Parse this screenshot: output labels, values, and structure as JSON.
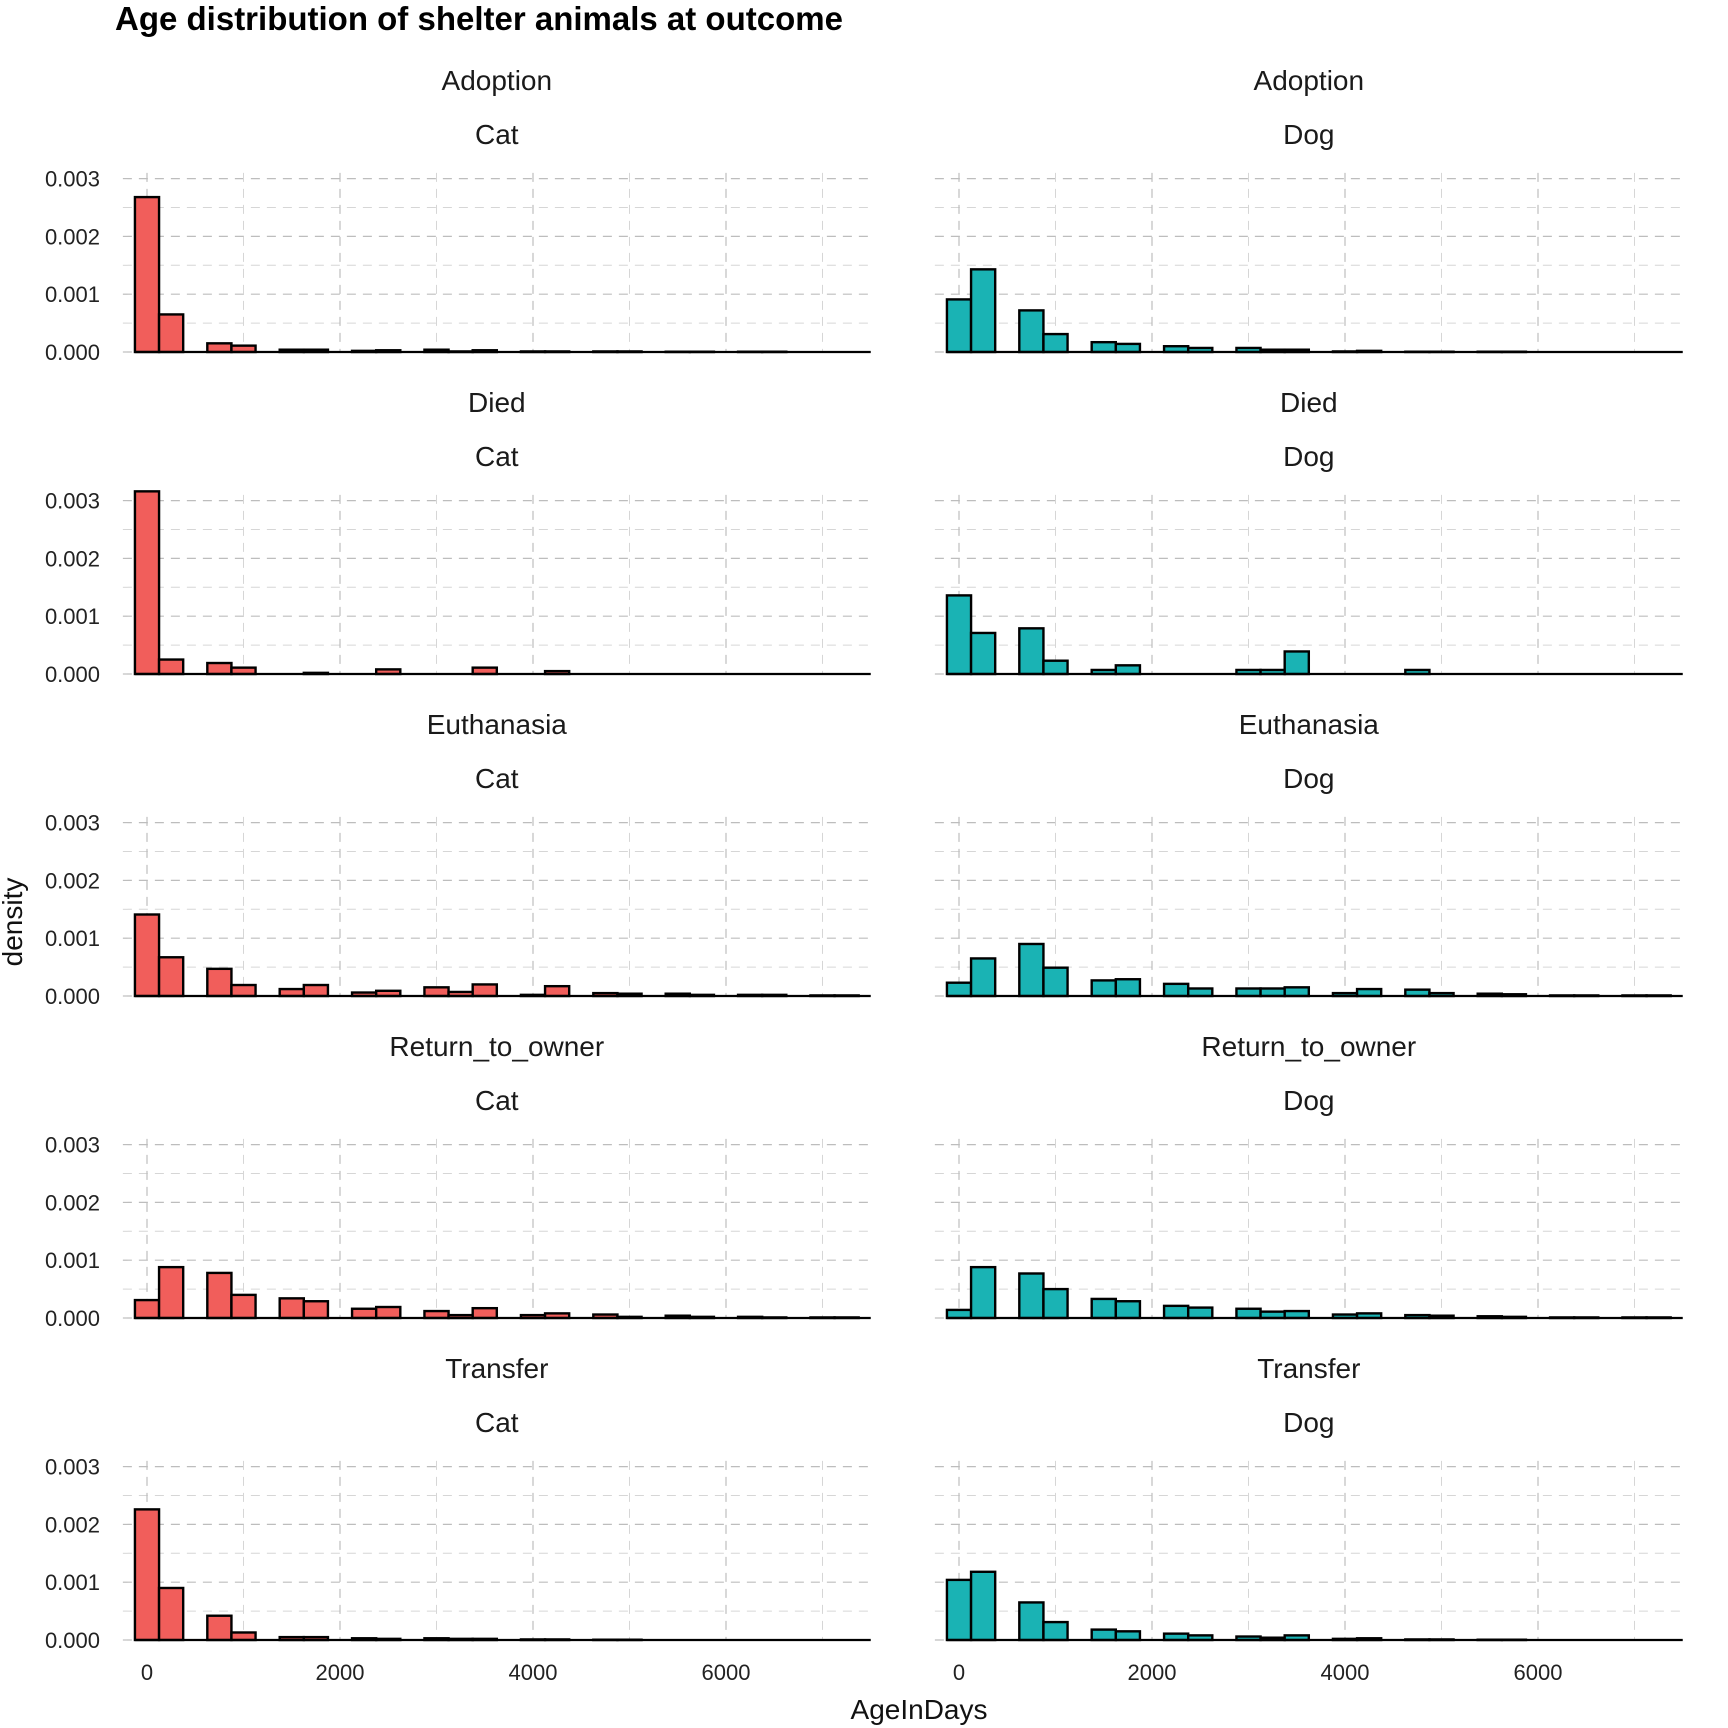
{
  "chart_data": {
    "type": "bar",
    "subtype": "faceted-histogram",
    "title": "Age distribution of shelter animals at outcome",
    "xlabel": "AgeInDays",
    "ylabel": "density",
    "xlim": [
      -250,
      7500
    ],
    "ylim": [
      0,
      0.0031
    ],
    "x_ticks": [
      0,
      2000,
      4000,
      6000
    ],
    "x_tick_labels": [
      "0",
      "2000",
      "4000",
      "6000"
    ],
    "y_ticks": [
      0,
      0.001,
      0.002,
      0.003
    ],
    "y_tick_labels": [
      "0.000",
      "0.001",
      "0.002",
      "0.003"
    ],
    "grid": true,
    "bin_width": 250,
    "bin_starts": [
      -125,
      125,
      375,
      625,
      875,
      1125,
      1375,
      1625,
      1875,
      2125,
      2375,
      2625,
      2875,
      3125,
      3375,
      3625,
      3875,
      4125,
      4375,
      4625,
      4875,
      5125,
      5375,
      5625,
      5875,
      6125,
      6375,
      6625,
      6875,
      7125
    ],
    "species_colors": {
      "Cat": "#f15e5b",
      "Dog": "#1ab3b4"
    },
    "panels": [
      {
        "outcome": "Adoption",
        "species": "Cat",
        "values": [
          0.00268,
          0.00065,
          0,
          0.00015,
          0.00011,
          0,
          4e-05,
          4e-05,
          0,
          2e-05,
          3e-05,
          0,
          4e-05,
          1e-05,
          3e-05,
          0,
          1e-05,
          1e-05,
          0,
          1e-05,
          1e-05,
          0,
          5e-06,
          5e-06,
          0,
          5e-06,
          5e-06,
          0,
          0,
          0
        ]
      },
      {
        "outcome": "Adoption",
        "species": "Dog",
        "values": [
          0.00091,
          0.00143,
          0,
          0.00072,
          0.00031,
          0,
          0.00017,
          0.00014,
          0,
          0.0001,
          7e-05,
          0,
          7e-05,
          4e-05,
          4e-05,
          0,
          1e-05,
          2e-05,
          0,
          5e-06,
          5e-06,
          0,
          5e-06,
          5e-06,
          0,
          0,
          0,
          0,
          0,
          0
        ]
      },
      {
        "outcome": "Died",
        "species": "Cat",
        "values": [
          0.00316,
          0.00025,
          0,
          0.00019,
          0.00011,
          0,
          0,
          2e-05,
          0,
          0,
          8e-05,
          0,
          0,
          0,
          0.00011,
          0,
          0,
          5e-05,
          0,
          0,
          0,
          0,
          0,
          0,
          0,
          0,
          0,
          0,
          0,
          0
        ]
      },
      {
        "outcome": "Died",
        "species": "Dog",
        "values": [
          0.00136,
          0.00071,
          0,
          0.00079,
          0.00023,
          0,
          7e-05,
          0.00015,
          0,
          0,
          0,
          0,
          7e-05,
          7e-05,
          0.00039,
          0,
          0,
          0,
          0,
          7e-05,
          0,
          0,
          0,
          0,
          0,
          0,
          0,
          0,
          0,
          0
        ]
      },
      {
        "outcome": "Euthanasia",
        "species": "Cat",
        "values": [
          0.00141,
          0.00067,
          0,
          0.00047,
          0.00019,
          0,
          0.00012,
          0.00019,
          0,
          6e-05,
          9e-05,
          0,
          0.00015,
          7e-05,
          0.0002,
          0,
          2e-05,
          0.00017,
          0,
          5e-05,
          4e-05,
          0,
          4e-05,
          2e-05,
          0,
          2e-05,
          2e-05,
          0,
          1e-05,
          1e-05
        ]
      },
      {
        "outcome": "Euthanasia",
        "species": "Dog",
        "values": [
          0.00023,
          0.00065,
          0,
          0.0009,
          0.00049,
          0,
          0.00027,
          0.00029,
          0,
          0.00021,
          0.00013,
          0,
          0.00013,
          0.00013,
          0.00015,
          0,
          5e-05,
          0.00012,
          0,
          0.00011,
          5e-05,
          0,
          4e-05,
          3e-05,
          0,
          1e-05,
          1e-05,
          0,
          1e-05,
          1e-05
        ]
      },
      {
        "outcome": "Return_to_owner",
        "species": "Cat",
        "values": [
          0.00031,
          0.00088,
          0,
          0.00078,
          0.0004,
          0,
          0.00034,
          0.00029,
          0,
          0.00016,
          0.00019,
          0,
          0.00012,
          5e-05,
          0.00017,
          0,
          5e-05,
          8e-05,
          0,
          6e-05,
          2e-05,
          0,
          4e-05,
          2e-05,
          0,
          2e-05,
          1e-05,
          0,
          1e-05,
          1e-05
        ]
      },
      {
        "outcome": "Return_to_owner",
        "species": "Dog",
        "values": [
          0.00014,
          0.00088,
          0,
          0.00077,
          0.0005,
          0,
          0.00033,
          0.00029,
          0,
          0.00021,
          0.00018,
          0,
          0.00016,
          0.00011,
          0.00012,
          0,
          6e-05,
          8e-05,
          0,
          5e-05,
          4e-05,
          0,
          3e-05,
          2e-05,
          0,
          1e-05,
          1e-05,
          0,
          1e-05,
          1e-05
        ]
      },
      {
        "outcome": "Transfer",
        "species": "Cat",
        "values": [
          0.00226,
          0.0009,
          0,
          0.00042,
          0.00013,
          0,
          5e-05,
          5e-05,
          0,
          3e-05,
          2e-05,
          0,
          3e-05,
          2e-05,
          2e-05,
          0,
          1e-05,
          1e-05,
          0,
          5e-06,
          5e-06,
          0,
          0,
          0,
          0,
          0,
          0,
          0,
          0,
          0
        ]
      },
      {
        "outcome": "Transfer",
        "species": "Dog",
        "values": [
          0.00104,
          0.00118,
          0,
          0.00065,
          0.00031,
          0,
          0.00018,
          0.00015,
          0,
          0.00011,
          8e-05,
          0,
          6e-05,
          4e-05,
          8e-05,
          0,
          2e-05,
          3e-05,
          0,
          1e-05,
          1e-05,
          0,
          5e-06,
          5e-06,
          0,
          0,
          0,
          0,
          0,
          0
        ]
      }
    ]
  }
}
